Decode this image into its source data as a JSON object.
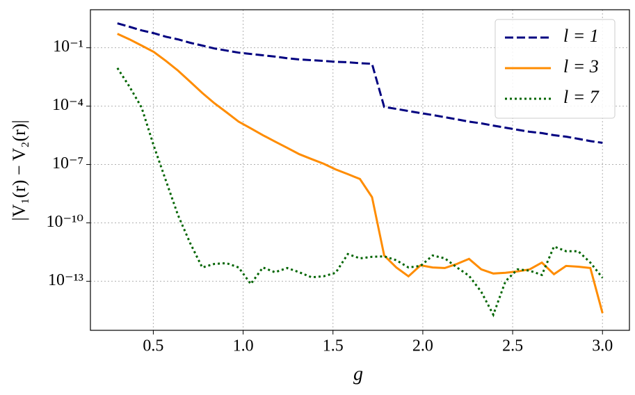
{
  "chart_data": {
    "type": "line",
    "xlabel": "g",
    "ylabel": "|V₁(r) − V₂(r)|",
    "x": [
      0.3,
      0.3675,
      0.435,
      0.5025,
      0.57,
      0.6375,
      0.705,
      0.7725,
      0.84,
      0.9075,
      0.975,
      1.0425,
      1.11,
      1.1775,
      1.245,
      1.3125,
      1.38,
      1.4475,
      1.515,
      1.5825,
      1.65,
      1.7175,
      1.785,
      1.8525,
      1.92,
      1.9875,
      2.055,
      2.1225,
      2.19,
      2.2575,
      2.325,
      2.3925,
      2.46,
      2.5275,
      2.595,
      2.6625,
      2.73,
      2.7975,
      2.865,
      2.9325,
      3.0
    ],
    "series": [
      {
        "name": "l = 1",
        "color": "#000080",
        "linestyle": "dashed",
        "values": [
          1.8,
          1.2,
          0.78,
          0.56,
          0.37,
          0.27,
          0.18,
          0.13,
          0.092,
          0.072,
          0.056,
          0.048,
          0.041,
          0.035,
          0.029,
          0.025,
          0.023,
          0.021,
          0.019,
          0.018,
          0.016,
          0.015,
          9.1e-05,
          7.2e-05,
          5.6e-05,
          4.4e-05,
          3.5e-05,
          2.7e-05,
          2.1e-05,
          1.6e-05,
          1.3e-05,
          1e-05,
          7.8e-06,
          6.1e-06,
          4.8e-06,
          4.1e-06,
          3.2e-06,
          2.7e-06,
          2.1e-06,
          1.6e-06,
          1.3e-06
        ]
      },
      {
        "name": "l = 3",
        "color": "#ff8c00",
        "linestyle": "solid",
        "values": [
          0.52,
          0.27,
          0.13,
          0.061,
          0.021,
          0.0067,
          0.0018,
          0.00048,
          0.00014,
          4.8e-05,
          1.6e-05,
          7.2e-06,
          3.2e-06,
          1.5e-06,
          7.2e-07,
          3.4e-07,
          1.9e-07,
          1.1e-07,
          5.6e-08,
          3.2e-08,
          1.8e-08,
          2.1e-09,
          2.1e-12,
          5.1e-13,
          1.8e-13,
          6.6e-13,
          5.1e-13,
          4.8e-13,
          7.8e-13,
          1.4e-12,
          4.1e-13,
          2.5e-13,
          2.7e-13,
          3.2e-13,
          4.1e-13,
          9.1e-13,
          2.3e-13,
          6.1e-13,
          5.6e-13,
          4.8e-13,
          2.3e-15
        ]
      },
      {
        "name": "l = 7",
        "color": "#006400",
        "linestyle": "dotted",
        "values": [
          0.0091,
          0.001,
          8.5e-05,
          9.1e-07,
          1.5e-08,
          2.5e-10,
          9.1e-12,
          5.1e-13,
          7.8e-13,
          8.5e-13,
          5.1e-13,
          7.2e-14,
          5.1e-13,
          2.9e-13,
          4.8e-13,
          2.9e-13,
          1.6e-13,
          1.8e-13,
          2.7e-13,
          2.5e-12,
          1.5e-12,
          1.8e-12,
          1.9e-12,
          1.2e-12,
          5.1e-13,
          6.1e-13,
          2.1e-12,
          1.5e-12,
          5.1e-13,
          1.9e-13,
          2.9e-14,
          1.9e-15,
          1e-13,
          4.1e-13,
          3.5e-13,
          2.1e-13,
          6.1e-12,
          3.5e-12,
          3.5e-12,
          9.1e-13,
          1.5e-13
        ]
      }
    ],
    "xlim": [
      0.15,
      3.15
    ],
    "xticks": [
      0.5,
      {
        "value": 1,
        "label": "1.0"
      },
      1.5,
      {
        "value": 2,
        "label": "2.0"
      },
      2.5,
      {
        "value": 3,
        "label": "3.0"
      }
    ],
    "ylim": [
      3e-16,
      9
    ],
    "yscale": "log",
    "yticks": [
      {
        "value": 0.1,
        "label": "10⁻¹"
      },
      {
        "value": 0.0001,
        "label": "10⁻⁴"
      },
      {
        "value": 1e-07,
        "label": "10⁻⁷"
      },
      {
        "value": 1e-10,
        "label": "10⁻¹⁰"
      },
      {
        "value": 1e-13,
        "label": "10⁻¹³"
      }
    ],
    "grid": true,
    "legend": "upper right"
  }
}
